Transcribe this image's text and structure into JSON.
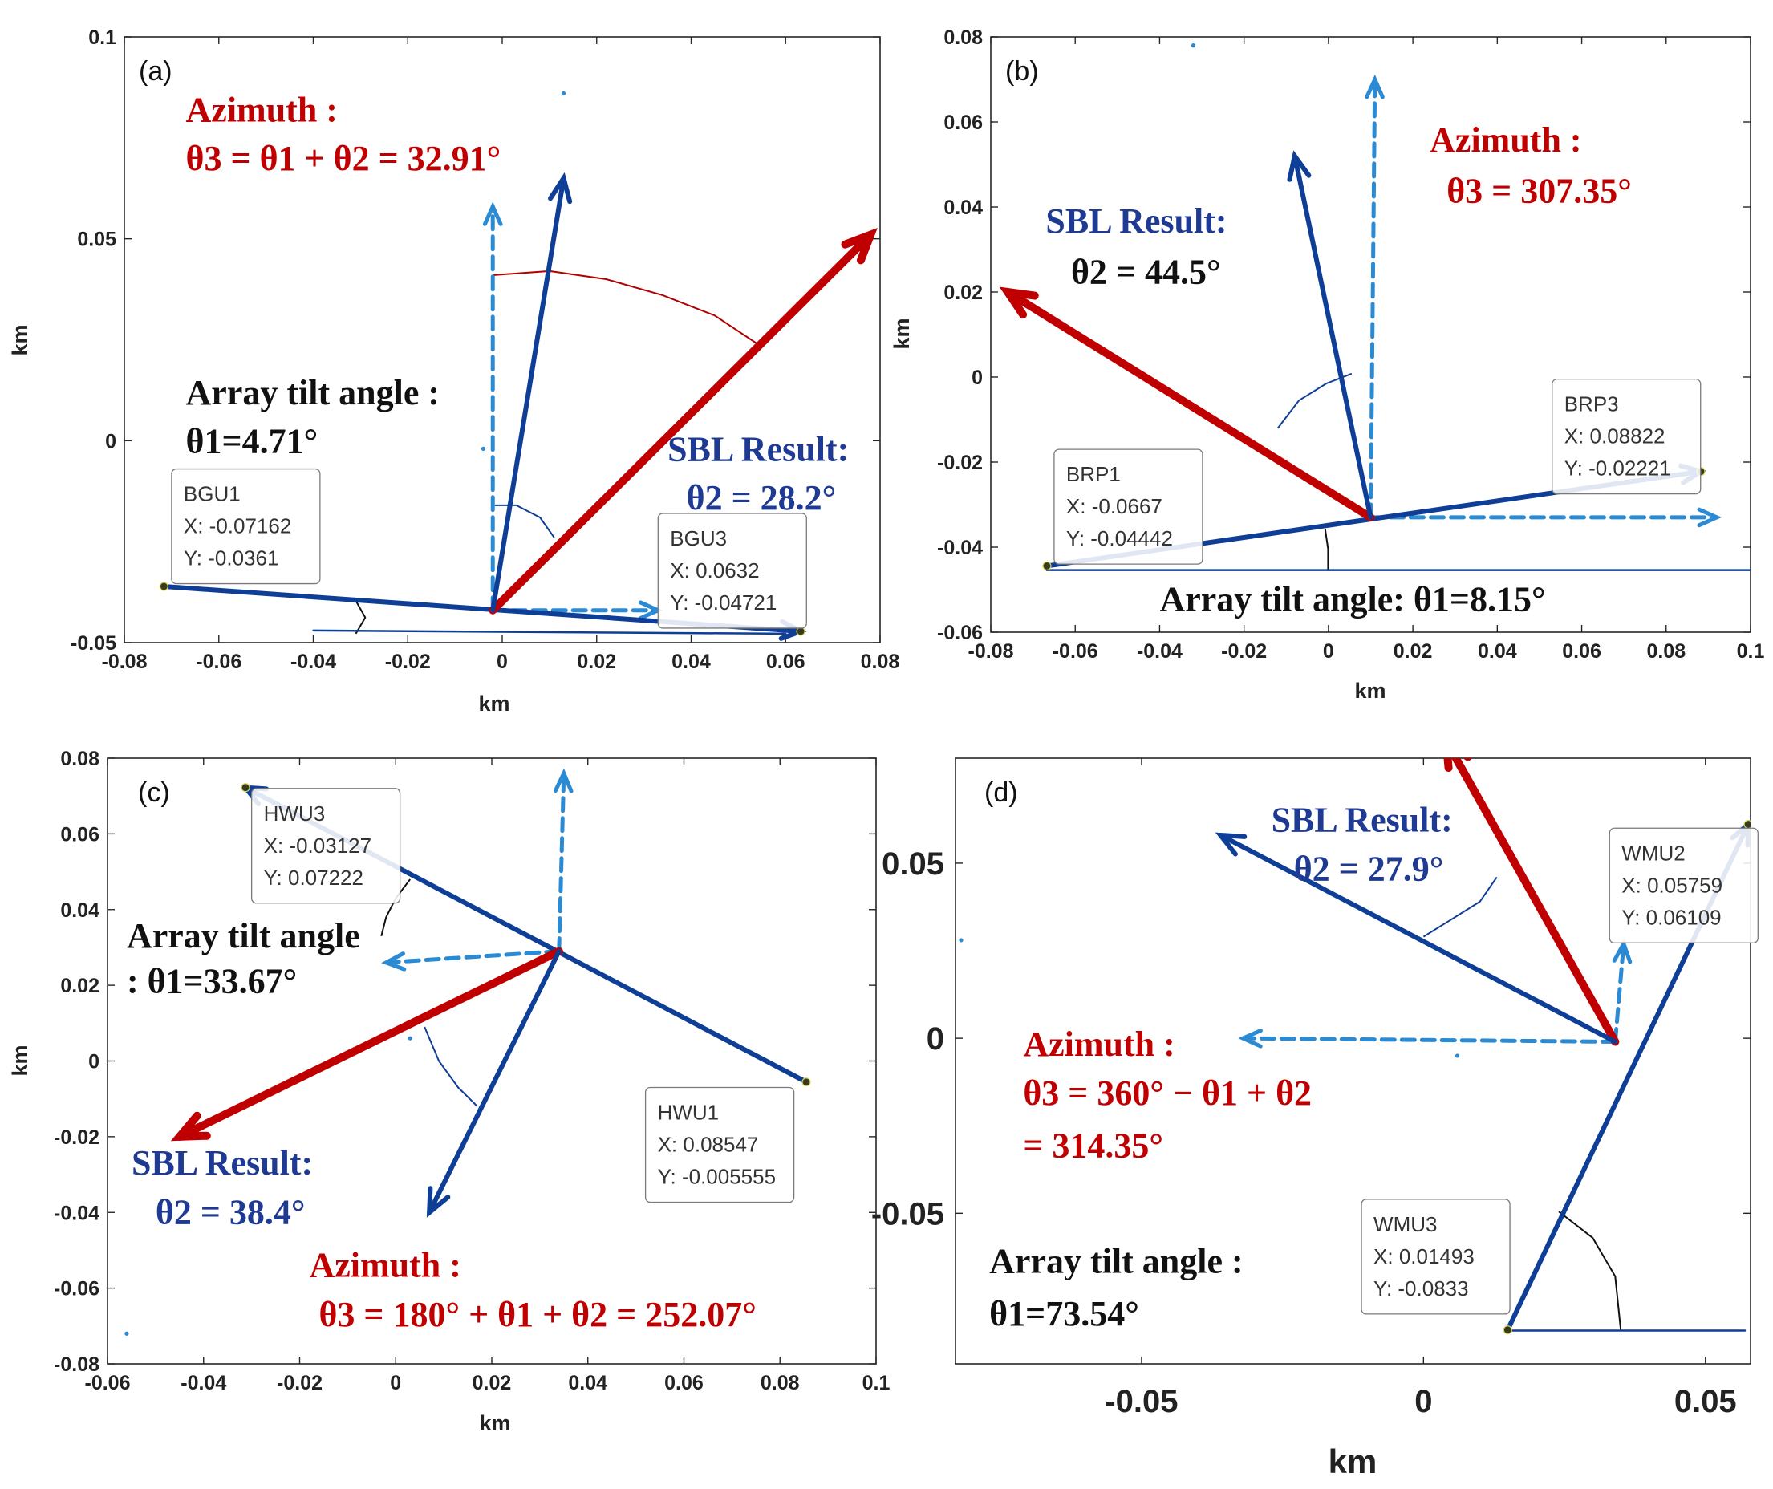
{
  "figure": {
    "colors": {
      "red": "#c00000",
      "navy": "#0f3e96",
      "light_blue": "#2a8ad4",
      "ann_navy": "#1f3a93",
      "black": "#111111"
    }
  },
  "chart_data": [
    {
      "id": "a",
      "type": "scatter",
      "panel_label": "(a)",
      "xlabel": "km",
      "ylabel": "km",
      "xlim": [
        -0.08,
        0.08
      ],
      "ylim": [
        -0.05,
        0.1
      ],
      "xticks": [
        -0.08,
        -0.06,
        -0.04,
        -0.02,
        0,
        0.02,
        0.04,
        0.06,
        0.08
      ],
      "xtick_labels": [
        "-0.08",
        "-0.06",
        "-0.04",
        "-0.02",
        "0",
        "0.02",
        "0.04",
        "0.06",
        "0.08"
      ],
      "yticks": [
        -0.05,
        0,
        0.05,
        0.1
      ],
      "ytick_labels": [
        "-0.05",
        "0",
        "0.05",
        "0.1"
      ],
      "points": [
        [
          -0.07162,
          -0.0361
        ],
        [
          0.0632,
          -0.04721
        ]
      ],
      "scatter": [
        [
          0.013,
          0.086
        ],
        [
          -0.004,
          -0.002
        ]
      ],
      "segments": [
        {
          "kind": "array",
          "from": [
            -0.07162,
            -0.0361
          ],
          "to": [
            0.0632,
            -0.04721
          ],
          "head": true
        },
        {
          "kind": "sbl",
          "from": [
            -0.002,
            -0.042
          ],
          "to": [
            0.013,
            0.065
          ],
          "head": true
        },
        {
          "kind": "azimuth",
          "from": [
            -0.002,
            -0.042
          ],
          "to": [
            0.078,
            0.051
          ],
          "head": true
        },
        {
          "kind": "north",
          "from": [
            -0.002,
            -0.042
          ],
          "to": [
            -0.002,
            0.058
          ],
          "head": true
        },
        {
          "kind": "parallel",
          "from": [
            -0.002,
            -0.042
          ],
          "to": [
            0.033,
            -0.042
          ],
          "head": true
        },
        {
          "kind": "base",
          "from": [
            -0.04,
            -0.047
          ],
          "to": [
            0.06,
            -0.0478
          ],
          "head": false
        }
      ],
      "arcs": [
        {
          "color": "red",
          "points": [
            [
              -0.002,
              0.041
            ],
            [
              0.01,
              0.042
            ],
            [
              0.022,
              0.04
            ],
            [
              0.034,
              0.036
            ],
            [
              0.045,
              0.031
            ],
            [
              0.054,
              0.024
            ]
          ]
        },
        {
          "color": "navy",
          "points": [
            [
              -0.0016,
              -0.016
            ],
            [
              0.003,
              -0.016
            ],
            [
              0.008,
              -0.019
            ],
            [
              0.011,
              -0.024
            ]
          ]
        },
        {
          "color": "black",
          "points": [
            [
              -0.031,
              -0.0396
            ],
            [
              -0.029,
              -0.0438
            ],
            [
              -0.031,
              -0.0478
            ]
          ]
        }
      ],
      "datatips": [
        {
          "name": "BGU1",
          "x": "X: -0.07162",
          "y": "Y: -0.0361",
          "anchor": [
            -0.07,
            -0.007
          ]
        },
        {
          "name": "BGU3",
          "x": "X: 0.0632",
          "y": "Y: -0.04721",
          "anchor": [
            0.033,
            -0.018
          ]
        }
      ],
      "annotations": [
        {
          "key": "az_title",
          "lines": [
            "Azimuth :"
          ],
          "color": "red",
          "at": [
            -0.067,
            0.079
          ]
        },
        {
          "key": "az_formula",
          "lines": [
            "θ3 = θ1 + θ2 = 32.91°"
          ],
          "color": "red",
          "at": [
            -0.067,
            0.067
          ]
        },
        {
          "key": "tilt_title",
          "lines": [
            "Array tilt angle :"
          ],
          "color": "black",
          "at": [
            -0.067,
            0.009
          ]
        },
        {
          "key": "tilt_value",
          "lines": [
            "θ1=4.71°"
          ],
          "color": "black",
          "at": [
            -0.067,
            -0.003
          ]
        },
        {
          "key": "sbl_title",
          "lines": [
            "SBL Result:"
          ],
          "color": "ann_navy",
          "at": [
            0.035,
            -0.005
          ]
        },
        {
          "key": "sbl_value",
          "lines": [
            "θ2 = 28.2°"
          ],
          "color": "ann_navy",
          "at": [
            0.039,
            -0.017
          ]
        }
      ]
    },
    {
      "id": "b",
      "type": "scatter",
      "panel_label": "(b)",
      "xlabel": "km",
      "ylabel": "km",
      "xlim": [
        -0.08,
        0.1
      ],
      "ylim": [
        -0.06,
        0.08
      ],
      "xticks": [
        -0.08,
        -0.06,
        -0.04,
        -0.02,
        0,
        0.02,
        0.04,
        0.06,
        0.08,
        0.1
      ],
      "xtick_labels": [
        "-0.08",
        "-0.06",
        "-0.04",
        "-0.02",
        "0",
        "0.02",
        "0.04",
        "0.06",
        "0.08",
        "0.1"
      ],
      "yticks": [
        -0.06,
        -0.04,
        -0.02,
        0,
        0.02,
        0.04,
        0.06,
        0.08
      ],
      "ytick_labels": [
        "-0.06",
        "-0.04",
        "-0.02",
        "0",
        "0.02",
        "0.04",
        "0.06",
        "0.08"
      ],
      "points": [
        [
          -0.0667,
          -0.04442
        ],
        [
          0.08822,
          -0.02221
        ]
      ],
      "scatter": [
        [
          -0.032,
          0.078
        ]
      ],
      "segments": [
        {
          "kind": "array",
          "from": [
            -0.0667,
            -0.04442
          ],
          "to": [
            0.08822,
            -0.02221
          ],
          "head": true
        },
        {
          "kind": "sbl",
          "from": [
            0.01,
            -0.033
          ],
          "to": [
            -0.008,
            0.052
          ],
          "head": true
        },
        {
          "kind": "azimuth",
          "from": [
            0.01,
            -0.033
          ],
          "to": [
            -0.076,
            0.02
          ],
          "head": true
        },
        {
          "kind": "north",
          "from": [
            0.01,
            -0.033
          ],
          "to": [
            0.011,
            0.07
          ],
          "head": true
        },
        {
          "kind": "parallel",
          "from": [
            0.01,
            -0.033
          ],
          "to": [
            0.092,
            -0.033
          ],
          "head": true
        },
        {
          "kind": "base",
          "from": [
            -0.0667,
            -0.0454
          ],
          "to": [
            0.1,
            -0.0454
          ],
          "head": false
        }
      ],
      "arcs": [
        {
          "color": "navy",
          "points": [
            [
              -0.012,
              -0.012
            ],
            [
              -0.007,
              -0.0055
            ],
            [
              -0.0005,
              -0.0015
            ],
            [
              0.0055,
              0.0008
            ]
          ]
        },
        {
          "color": "black",
          "points": [
            [
              -0.0008,
              -0.0357
            ],
            [
              -0.0001,
              -0.0404
            ],
            [
              -0.0001,
              -0.0452
            ]
          ]
        }
      ],
      "datatips": [
        {
          "name": "BRP1",
          "x": "X: -0.0667",
          "y": "Y: -0.04442",
          "anchor": [
            -0.065,
            -0.017
          ]
        },
        {
          "name": "BRP3",
          "x": "X: 0.08822",
          "y": "Y: -0.02221",
          "anchor": [
            0.053,
            -0.0005
          ]
        }
      ],
      "annotations": [
        {
          "key": "az_title",
          "lines": [
            "Azimuth :"
          ],
          "color": "red",
          "at": [
            0.024,
            0.053
          ]
        },
        {
          "key": "az_value",
          "lines": [
            "θ3 = 307.35°"
          ],
          "color": "red",
          "at": [
            0.028,
            0.041
          ]
        },
        {
          "key": "sbl_title",
          "lines": [
            "SBL Result:"
          ],
          "color": "ann_navy",
          "at": [
            -0.067,
            0.034
          ]
        },
        {
          "key": "sbl_value",
          "lines": [
            "θ2 = 44.5°"
          ],
          "color": "black",
          "at": [
            -0.061,
            0.022
          ]
        },
        {
          "key": "tilt",
          "lines": [
            "Array tilt angle: θ1=8.15°"
          ],
          "color": "black",
          "at": [
            -0.04,
            -0.055
          ]
        }
      ]
    },
    {
      "id": "c",
      "type": "scatter",
      "panel_label": "(c)",
      "xlabel": "km",
      "ylabel": "km",
      "xlim": [
        -0.06,
        0.1
      ],
      "ylim": [
        -0.08,
        0.08
      ],
      "xticks": [
        -0.06,
        -0.04,
        -0.02,
        0,
        0.02,
        0.04,
        0.06,
        0.08,
        0.1
      ],
      "xtick_labels": [
        "-0.06",
        "-0.04",
        "-0.02",
        "0",
        "0.02",
        "0.04",
        "0.06",
        "0.08",
        "0.1"
      ],
      "yticks": [
        -0.08,
        -0.06,
        -0.04,
        -0.02,
        0,
        0.02,
        0.04,
        0.06,
        0.08
      ],
      "ytick_labels": [
        "-0.08",
        "-0.06",
        "-0.04",
        "-0.02",
        "0",
        "0.02",
        "0.04",
        "0.06",
        "0.08"
      ],
      "points": [
        [
          -0.03127,
          0.07222
        ],
        [
          0.08547,
          -0.005555
        ]
      ],
      "scatter": [
        [
          0.003,
          0.006
        ],
        [
          -0.056,
          -0.072
        ]
      ],
      "segments": [
        {
          "kind": "array",
          "from": [
            0.08547,
            -0.005555
          ],
          "to": [
            -0.03127,
            0.07222
          ],
          "head": true
        },
        {
          "kind": "sbl",
          "from": [
            0.034,
            0.029
          ],
          "to": [
            0.007,
            -0.04
          ],
          "head": true
        },
        {
          "kind": "azimuth",
          "from": [
            0.034,
            0.029
          ],
          "to": [
            -0.045,
            -0.02
          ],
          "head": true
        },
        {
          "kind": "north",
          "from": [
            0.034,
            0.029
          ],
          "to": [
            0.035,
            0.076
          ],
          "head": true
        },
        {
          "kind": "parallel",
          "from": [
            0.034,
            0.029
          ],
          "to": [
            -0.002,
            0.026
          ],
          "head": true
        }
      ],
      "arcs": [
        {
          "color": "navy",
          "points": [
            [
              0.006,
              0.009
            ],
            [
              0.009,
              0.0
            ],
            [
              0.013,
              -0.007
            ],
            [
              0.017,
              -0.012
            ]
          ]
        },
        {
          "color": "black",
          "points": [
            [
              0.003,
              0.048
            ],
            [
              0.0,
              0.043
            ],
            [
              -0.002,
              0.038
            ],
            [
              -0.003,
              0.033
            ]
          ]
        }
      ],
      "datatips": [
        {
          "name": "HWU3",
          "x": "X: -0.03127",
          "y": "Y: 0.07222",
          "anchor": [
            -0.03,
            0.072
          ]
        },
        {
          "name": "HWU1",
          "x": "X: 0.08547",
          "y": "Y: -0.005555",
          "anchor": [
            0.052,
            -0.007
          ]
        }
      ],
      "annotations": [
        {
          "key": "tilt_title",
          "lines": [
            "Array tilt angle"
          ],
          "color": "black",
          "at": [
            -0.056,
            0.03
          ]
        },
        {
          "key": "tilt_value",
          "lines": [
            ": θ1=33.67°"
          ],
          "color": "black",
          "at": [
            -0.056,
            0.018
          ]
        },
        {
          "key": "sbl_title",
          "lines": [
            "SBL Result:"
          ],
          "color": "ann_navy",
          "at": [
            -0.055,
            -0.03
          ]
        },
        {
          "key": "sbl_value",
          "lines": [
            "θ2 = 38.4°"
          ],
          "color": "ann_navy",
          "at": [
            -0.05,
            -0.043
          ]
        },
        {
          "key": "az_title",
          "lines": [
            "Azimuth :"
          ],
          "color": "red",
          "at": [
            -0.018,
            -0.057
          ]
        },
        {
          "key": "az_formula",
          "lines": [
            "θ3 = 180° + θ1 + θ2 = 252.07°"
          ],
          "color": "red",
          "at": [
            -0.016,
            -0.07
          ]
        }
      ]
    },
    {
      "id": "d",
      "type": "scatter",
      "panel_label": "(d)",
      "xlabel": "km",
      "ylabel": "",
      "xlim": [
        -0.083,
        0.058
      ],
      "ylim": [
        -0.093,
        0.08
      ],
      "xticks": [
        -0.05,
        0,
        0.05
      ],
      "xtick_labels": [
        "-0.05",
        "0",
        "0.05"
      ],
      "yticks": [
        -0.05,
        0,
        0.05
      ],
      "ytick_labels": [
        "-0.05",
        "0",
        "0.05"
      ],
      "points": [
        [
          0.05759,
          0.06109
        ],
        [
          0.01493,
          -0.0833
        ]
      ],
      "scatter": [
        [
          -0.082,
          0.028
        ],
        [
          0.006,
          -0.005
        ]
      ],
      "segments": [
        {
          "kind": "array",
          "from": [
            0.01493,
            -0.0833
          ],
          "to": [
            0.05759,
            0.06109
          ],
          "head": true
        },
        {
          "kind": "sbl",
          "from": [
            0.034,
            -0.001
          ],
          "to": [
            -0.036,
            0.058
          ],
          "head": true
        },
        {
          "kind": "azimuth",
          "from": [
            0.034,
            -0.001
          ],
          "to": [
            0.004,
            0.085
          ],
          "head": true
        },
        {
          "kind": "north",
          "from": [
            0.034,
            -0.001
          ],
          "to": [
            0.0355,
            0.027
          ],
          "head": true
        },
        {
          "kind": "parallel",
          "from": [
            0.034,
            -0.001
          ],
          "to": [
            -0.032,
            0.0
          ],
          "head": true
        },
        {
          "kind": "base",
          "from": [
            0.01493,
            -0.0835
          ],
          "to": [
            0.057,
            -0.0835
          ],
          "head": false
        }
      ],
      "arcs": [
        {
          "color": "navy",
          "points": [
            [
              0.0,
              0.029
            ],
            [
              0.005,
              0.034
            ],
            [
              0.01,
              0.039
            ],
            [
              0.013,
              0.046
            ]
          ]
        },
        {
          "color": "black",
          "points": [
            [
              0.024,
              -0.0495
            ],
            [
              0.03,
              -0.057
            ],
            [
              0.034,
              -0.068
            ],
            [
              0.035,
              -0.0835
            ]
          ]
        }
      ],
      "datatips": [
        {
          "name": "WMU2",
          "x": "X: 0.05759",
          "y": "Y: 0.06109",
          "anchor": [
            0.033,
            0.06
          ]
        },
        {
          "name": "WMU3",
          "x": "X: 0.01493",
          "y": "Y: -0.0833",
          "anchor": [
            -0.011,
            -0.046
          ]
        }
      ],
      "annotations": [
        {
          "key": "sbl_title",
          "lines": [
            "SBL Result:"
          ],
          "color": "ann_navy",
          "at": [
            -0.027,
            0.059
          ]
        },
        {
          "key": "sbl_value",
          "lines": [
            "θ2 = 27.9°"
          ],
          "color": "ann_navy",
          "at": [
            -0.023,
            0.045
          ]
        },
        {
          "key": "az_title",
          "lines": [
            "Azimuth :"
          ],
          "color": "red",
          "at": [
            -0.071,
            -0.005
          ]
        },
        {
          "key": "az_formula",
          "lines": [
            "θ3 = 360° − θ1 + θ2"
          ],
          "color": "red",
          "at": [
            -0.071,
            -0.019
          ]
        },
        {
          "key": "az_result",
          "lines": [
            "= 314.35°"
          ],
          "color": "red",
          "at": [
            -0.071,
            -0.034
          ]
        },
        {
          "key": "tilt_title",
          "lines": [
            "Array tilt angle :"
          ],
          "color": "black",
          "at": [
            -0.077,
            -0.067
          ]
        },
        {
          "key": "tilt_value",
          "lines": [
            "θ1=73.54°"
          ],
          "color": "black",
          "at": [
            -0.077,
            -0.082
          ]
        }
      ]
    }
  ]
}
